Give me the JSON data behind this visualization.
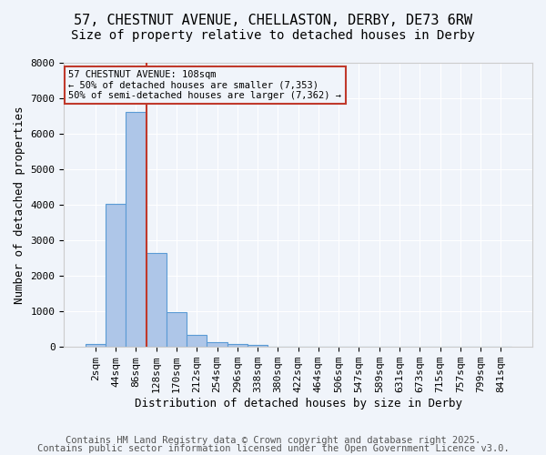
{
  "title_line1": "57, CHESTNUT AVENUE, CHELLASTON, DERBY, DE73 6RW",
  "title_line2": "Size of property relative to detached houses in Derby",
  "xlabel": "Distribution of detached houses by size in Derby",
  "ylabel": "Number of detached properties",
  "bin_labels": [
    "2sqm",
    "44sqm",
    "86sqm",
    "128sqm",
    "170sqm",
    "212sqm",
    "254sqm",
    "296sqm",
    "338sqm",
    "380sqm",
    "422sqm",
    "464sqm",
    "506sqm",
    "547sqm",
    "589sqm",
    "631sqm",
    "673sqm",
    "715sqm",
    "757sqm",
    "799sqm",
    "841sqm"
  ],
  "bar_values": [
    80,
    4020,
    6620,
    2650,
    980,
    340,
    130,
    70,
    50,
    10,
    0,
    0,
    0,
    0,
    0,
    0,
    0,
    0,
    0,
    0,
    0
  ],
  "bar_color": "#aec6e8",
  "bar_edge_color": "#5b9bd5",
  "vline_color": "#c0392b",
  "vline_pos": 2.5,
  "annotation_title": "57 CHESTNUT AVENUE: 108sqm",
  "annotation_line1": "← 50% of detached houses are smaller (7,353)",
  "annotation_line2": "50% of semi-detached houses are larger (7,362) →",
  "annotation_box_color": "#c0392b",
  "ylim": [
    0,
    8000
  ],
  "yticks": [
    0,
    1000,
    2000,
    3000,
    4000,
    5000,
    6000,
    7000,
    8000
  ],
  "footer_line1": "Contains HM Land Registry data © Crown copyright and database right 2025.",
  "footer_line2": "Contains public sector information licensed under the Open Government Licence v3.0.",
  "background_color": "#f0f4fa",
  "grid_color": "#ffffff",
  "title_fontsize": 11,
  "subtitle_fontsize": 10,
  "axis_label_fontsize": 9,
  "tick_fontsize": 8,
  "annotation_fontsize": 7.5,
  "footer_fontsize": 7.5
}
